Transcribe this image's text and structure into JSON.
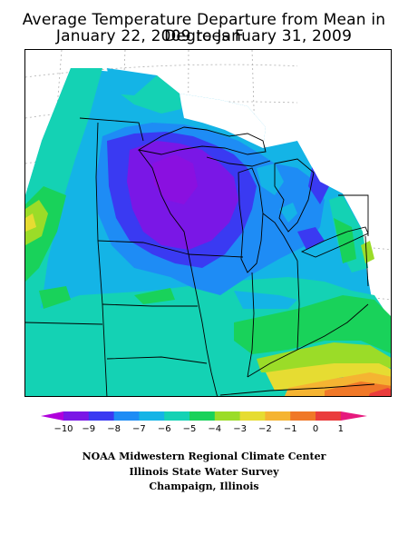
{
  "title_line1": "Average Temperature Departure from Mean in Degrees F",
  "title_line2": "January 22, 2009 to January 31, 2009",
  "legend": {
    "tick_labels": [
      "−10",
      "−9",
      "−8",
      "−7",
      "−6",
      "−5",
      "−4",
      "−3",
      "−2",
      "−1",
      "0",
      "1"
    ],
    "bins": [
      {
        "label": "< -10",
        "color": "#b000dc"
      },
      {
        "label": "-10 to -9",
        "color": "#7a17e6"
      },
      {
        "label": "-9 to -8",
        "color": "#3a3af2"
      },
      {
        "label": "-8 to -7",
        "color": "#1e8cf5"
      },
      {
        "label": "-7 to -6",
        "color": "#14b4e6"
      },
      {
        "label": "-6 to -5",
        "color": "#14d2b4"
      },
      {
        "label": "-5 to -4",
        "color": "#19d25a"
      },
      {
        "label": "-4 to -3",
        "color": "#9bdc28"
      },
      {
        "label": "-3 to -2",
        "color": "#e6dc32"
      },
      {
        "label": "-2 to -1",
        "color": "#f5b432"
      },
      {
        "label": "-1 to 0",
        "color": "#f07828"
      },
      {
        "label": "0 to 1",
        "color": "#ea3c3c"
      },
      {
        "label": "> 1",
        "color": "#e6197d"
      }
    ]
  },
  "credits": {
    "line1": "NOAA Midwestern Regional Climate Center",
    "line2": "Illinois State Water Survey",
    "line3": "Champaign, Illinois"
  }
}
